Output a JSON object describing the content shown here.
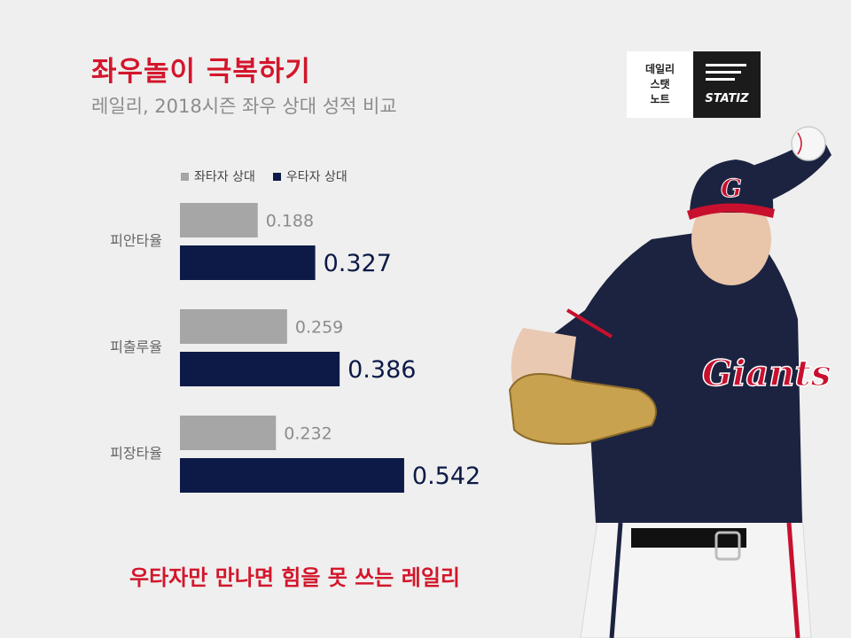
{
  "title": "좌우놀이 극복하기",
  "subtitle": "레일리, 2018시즌 좌우 상대 성적 비교",
  "badge": {
    "lines": [
      "데일리",
      "스탯",
      "노트"
    ],
    "brand": "STATIZ"
  },
  "colors": {
    "title_red": "#d3162b",
    "lhb": "#a6a6a6",
    "rhb": "#0d1a47",
    "jersey_navy": "#1b2340",
    "cap_red": "#c8102e"
  },
  "chart_data": {
    "type": "bar",
    "orientation": "horizontal",
    "categories": [
      "피안타율",
      "피출루율",
      "피장타율"
    ],
    "series": [
      {
        "name": "좌타자 상대",
        "values": [
          0.188,
          0.259,
          0.232
        ],
        "labels": [
          "0.188",
          "0.259",
          "0.232"
        ],
        "color": "#a6a6a6"
      },
      {
        "name": "우타자 상대",
        "values": [
          0.327,
          0.386,
          0.542
        ],
        "labels": [
          "0.327",
          "0.386",
          "0.542"
        ],
        "color": "#0d1a47"
      }
    ],
    "xlim": [
      0,
      0.6
    ],
    "grid": false,
    "legend": "top-left"
  },
  "tagline": "우타자만 만나면 힘을 못 쓰는 레일리",
  "photo": {
    "cap_letter": "G",
    "jersey_text": "Giants"
  }
}
